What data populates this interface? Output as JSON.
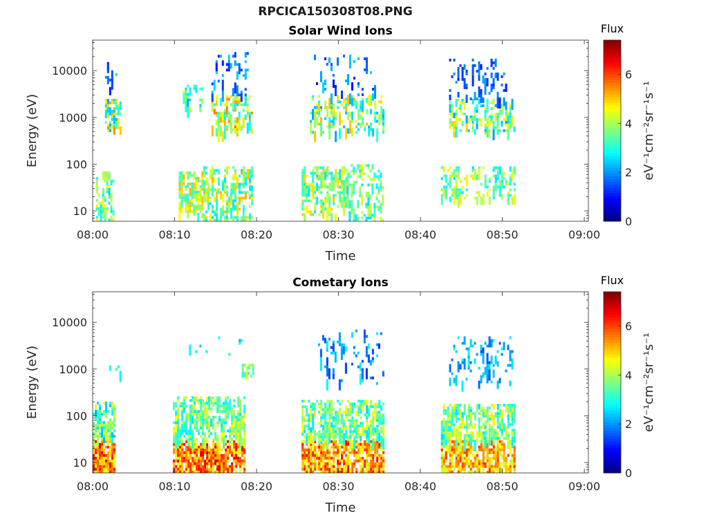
{
  "title": "RPCICA150308T08.PNG",
  "colorbar_label": "eV⁻¹cm⁻²sr⁻¹s⁻¹",
  "chart_data": [
    {
      "type": "heatmap",
      "title": "Solar Wind Ions",
      "xlabel": "Time",
      "ylabel": "Energy (eV)",
      "x_ticks": [
        "08:00",
        "08:10",
        "08:20",
        "08:30",
        "08:40",
        "08:50",
        "09:00"
      ],
      "x_range_minutes": [
        0,
        60.5
      ],
      "y_ticks": [
        "10",
        "100",
        "1000",
        "10000"
      ],
      "y_scale": "log",
      "y_range": [
        6,
        45000
      ],
      "colorbar": {
        "title": "Flux",
        "ticks": [
          "0",
          "2",
          "4",
          "6"
        ],
        "range": [
          0,
          7.4
        ],
        "colormap": "jet"
      },
      "clusters": [
        {
          "t": [
            0.4,
            2.5
          ],
          "e": [
            6,
            70
          ],
          "v": [
            2.5,
            4.8
          ],
          "density": 0.35
        },
        {
          "t": [
            1.5,
            3.3
          ],
          "e": [
            600,
            2500
          ],
          "v": [
            2.0,
            5.5
          ],
          "density": 0.55
        },
        {
          "t": [
            1.5,
            3.0
          ],
          "e": [
            4000,
            20000
          ],
          "v": [
            1.0,
            2.5
          ],
          "density": 0.12
        },
        {
          "t": [
            10.5,
            13.5
          ],
          "e": [
            8,
            70
          ],
          "v": [
            3.0,
            5.2
          ],
          "density": 0.4
        },
        {
          "t": [
            11.0,
            13.5
          ],
          "e": [
            1500,
            5000
          ],
          "v": [
            2.0,
            4.5
          ],
          "density": 0.3
        },
        {
          "t": [
            13.5,
            19.5
          ],
          "e": [
            6,
            90
          ],
          "v": [
            2.5,
            5.2
          ],
          "density": 0.35
        },
        {
          "t": [
            14.5,
            19.5
          ],
          "e": [
            500,
            3000
          ],
          "v": [
            2.5,
            5.8
          ],
          "density": 0.35
        },
        {
          "t": [
            14.5,
            19.0
          ],
          "e": [
            3000,
            25000
          ],
          "v": [
            1.0,
            2.5
          ],
          "density": 0.15
        },
        {
          "t": [
            25.5,
            31.0
          ],
          "e": [
            8,
            90
          ],
          "v": [
            2.5,
            5.0
          ],
          "density": 0.4
        },
        {
          "t": [
            26.5,
            35.5
          ],
          "e": [
            500,
            3000
          ],
          "v": [
            2.0,
            5.2
          ],
          "density": 0.3
        },
        {
          "t": [
            31.0,
            35.5
          ],
          "e": [
            6,
            100
          ],
          "v": [
            2.5,
            4.5
          ],
          "density": 0.3
        },
        {
          "t": [
            27.0,
            34.5
          ],
          "e": [
            3000,
            22000
          ],
          "v": [
            1.0,
            2.5
          ],
          "density": 0.1
        },
        {
          "t": [
            42.5,
            51.5
          ],
          "e": [
            20,
            90
          ],
          "v": [
            2.5,
            4.8
          ],
          "density": 0.3
        },
        {
          "t": [
            43.5,
            51.5
          ],
          "e": [
            500,
            2500
          ],
          "v": [
            2.0,
            5.0
          ],
          "density": 0.35
        },
        {
          "t": [
            43.5,
            50.5
          ],
          "e": [
            2500,
            18000
          ],
          "v": [
            1.0,
            2.2
          ],
          "density": 0.15
        }
      ]
    },
    {
      "type": "heatmap",
      "title": "Cometary Ions",
      "xlabel": "Time",
      "ylabel": "Energy (eV)",
      "x_ticks": [
        "08:00",
        "08:10",
        "08:20",
        "08:30",
        "08:40",
        "08:50",
        "09:00"
      ],
      "x_range_minutes": [
        0,
        60.5
      ],
      "y_ticks": [
        "10",
        "100",
        "1000",
        "10000"
      ],
      "y_scale": "log",
      "y_range": [
        6,
        45000
      ],
      "colorbar": {
        "title": "Flux",
        "ticks": [
          "0",
          "2",
          "4",
          "6"
        ],
        "range": [
          0,
          7.4
        ],
        "colormap": "jet"
      },
      "clusters": [
        {
          "t": [
            0.0,
            2.6
          ],
          "e": [
            6,
            30
          ],
          "v": [
            4.2,
            6.8
          ],
          "density": 0.75
        },
        {
          "t": [
            0.0,
            2.6
          ],
          "e": [
            30,
            200
          ],
          "v": [
            2.2,
            4.5
          ],
          "density": 0.5
        },
        {
          "t": [
            2.0,
            3.5
          ],
          "e": [
            900,
            1200
          ],
          "v": [
            2.5,
            3.2
          ],
          "density": 0.4
        },
        {
          "t": [
            9.8,
            18.5
          ],
          "e": [
            6,
            30
          ],
          "v": [
            4.2,
            6.8
          ],
          "density": 0.7
        },
        {
          "t": [
            9.8,
            18.5
          ],
          "e": [
            30,
            260
          ],
          "v": [
            2.5,
            4.8
          ],
          "density": 0.5
        },
        {
          "t": [
            18.2,
            19.5
          ],
          "e": [
            700,
            1300
          ],
          "v": [
            3.0,
            4.5
          ],
          "density": 0.5
        },
        {
          "t": [
            11.5,
            18.5
          ],
          "e": [
            2000,
            5000
          ],
          "v": [
            2.0,
            3.0
          ],
          "density": 0.08
        },
        {
          "t": [
            25.5,
            35.5
          ],
          "e": [
            6,
            30
          ],
          "v": [
            4.2,
            6.5
          ],
          "density": 0.7
        },
        {
          "t": [
            25.5,
            35.5
          ],
          "e": [
            30,
            220
          ],
          "v": [
            2.5,
            4.8
          ],
          "density": 0.5
        },
        {
          "t": [
            27.5,
            35.5
          ],
          "e": [
            500,
            7000
          ],
          "v": [
            1.2,
            2.8
          ],
          "density": 0.1
        },
        {
          "t": [
            42.5,
            51.5
          ],
          "e": [
            6,
            30
          ],
          "v": [
            4.0,
            6.2
          ],
          "density": 0.6
        },
        {
          "t": [
            42.5,
            51.5
          ],
          "e": [
            30,
            180
          ],
          "v": [
            2.5,
            4.8
          ],
          "density": 0.5
        },
        {
          "t": [
            43.5,
            51.5
          ],
          "e": [
            500,
            5000
          ],
          "v": [
            1.5,
            2.8
          ],
          "density": 0.12
        }
      ]
    }
  ]
}
